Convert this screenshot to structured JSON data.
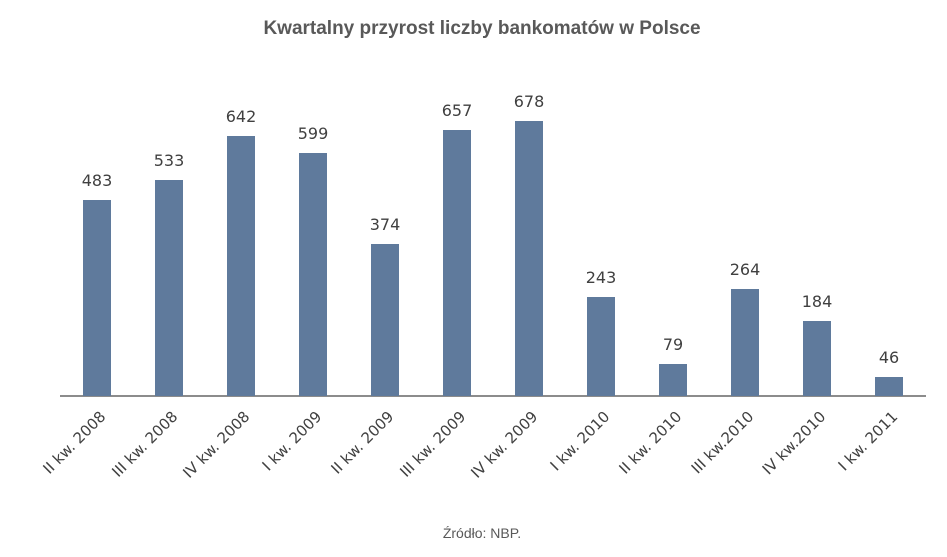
{
  "header": {
    "title": "Kwartalny przyrost liczby bankomatów w Polsce"
  },
  "footer": {
    "source": "Źródło: NBP."
  },
  "colors": {
    "bar": "#5f7a9c",
    "axis": "#8c8c8c",
    "text": "#404040",
    "title": "#595959"
  },
  "chart_data": {
    "type": "bar",
    "title": "Kwartalny przyrost liczby bankomatów w Polsce",
    "xlabel": "",
    "ylabel": "",
    "ylim": [
      0,
      700
    ],
    "grid": false,
    "legend": null,
    "data_labels": true,
    "annotations": [
      "Źródło: NBP."
    ],
    "categories": [
      "II kw. 2008",
      "III kw. 2008",
      "IV kw. 2008",
      "I kw. 2009",
      "II kw. 2009",
      "III kw. 2009",
      "IV kw. 2009",
      "I kw. 2010",
      "II kw. 2010",
      "III kw.2010",
      "IV kw.2010",
      "I kw. 2011"
    ],
    "values": [
      483,
      533,
      642,
      599,
      374,
      657,
      678,
      243,
      79,
      264,
      184,
      46
    ]
  }
}
